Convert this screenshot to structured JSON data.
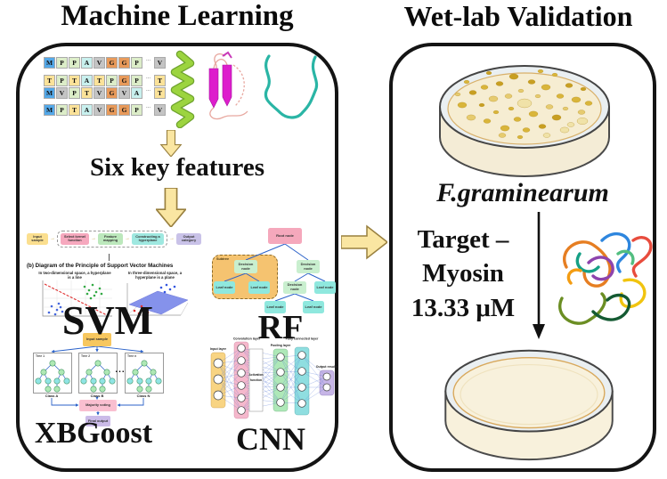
{
  "figure": {
    "ml_title": "Machine Learning",
    "wetlab_title": "Wet-lab Validation"
  },
  "ml_panel": {
    "sequence": {
      "ellipsis": "...",
      "rows": [
        {
          "cells": [
            "M",
            "P",
            "P",
            "A",
            "V",
            "G",
            "G",
            "P"
          ],
          "tail": "V"
        },
        {
          "cells": [
            "T",
            "P",
            "T",
            "A",
            "T",
            "P",
            "G",
            "P"
          ],
          "tail": "T"
        },
        {
          "cells": [
            "M",
            "V",
            "P",
            "T",
            "V",
            "G",
            "V",
            "A"
          ],
          "tail": "T"
        },
        {
          "cells": [
            "M",
            "P",
            "T",
            "A",
            "V",
            "G",
            "G",
            "P"
          ],
          "tail": "V"
        }
      ]
    },
    "residue_colors": {
      "M": "#54A8E8",
      "P": "#DCEDC8",
      "T": "#FBE299",
      "A": "#C8F0EE",
      "V": "#C4C4C4",
      "G": "#E89A5A"
    },
    "six_features_label": "Six key features",
    "svm": {
      "flow_boxes": [
        {
          "label": "Input sample",
          "color": "#FBDF8F"
        },
        {
          "label": "Select kernel function",
          "color": "#F6A8BE"
        },
        {
          "label": "Feature mapping",
          "color": "#BCE8BC"
        },
        {
          "label": "Constructing a hyperplane",
          "color": "#9FE8E0"
        },
        {
          "label": "Output category",
          "color": "#C9C2E8"
        }
      ],
      "caption": "(b) Diagram of the Principle of Support Vector Machines",
      "plot2d_label": "In two-dimensional space, a hyperplane is a line",
      "plot3d_label": "In three-dimensional space, a hyperplane is a plane",
      "label": "SVM"
    },
    "rf": {
      "root_label": "Root node",
      "decision_label": "Decision node",
      "leaf_label": "Leaf node",
      "subtree_label": "Subtree",
      "label": "RF"
    },
    "xgboost": {
      "input_label": "Input sample",
      "trees": [
        "Tree 1",
        "Tree 2",
        "Tree n"
      ],
      "dots": "...",
      "classes": [
        "Class A",
        "Class B",
        "Class N"
      ],
      "voting_label": "Majority voting",
      "final_label": "Final output",
      "label": "XBGoost"
    },
    "cnn": {
      "layers": [
        "Input layer",
        "Convolution layer",
        "Pooling layer",
        "Fully connected layer",
        "Output results"
      ],
      "activation_label": "Activation function",
      "label": "CNN"
    }
  },
  "wetlab_panel": {
    "organism": "F.graminearum",
    "target": {
      "line1": "Target –",
      "line2": "Myosin",
      "line3": "13.33 μM"
    }
  },
  "colors": {
    "block_arrow_fill": "#FAE6A2",
    "block_arrow_stroke": "#99803F",
    "diagram_line_blue": "#2B62C9",
    "colony_palette": [
      "#D9B53A",
      "#C89F22",
      "#E6CB6F",
      "#F0E2A8"
    ],
    "agar_fill": "#F6EDD2",
    "helix_green": "#9CD43F",
    "sheet_magenta": "#DD1ECC",
    "coil_teal": "#2AB5A5"
  }
}
